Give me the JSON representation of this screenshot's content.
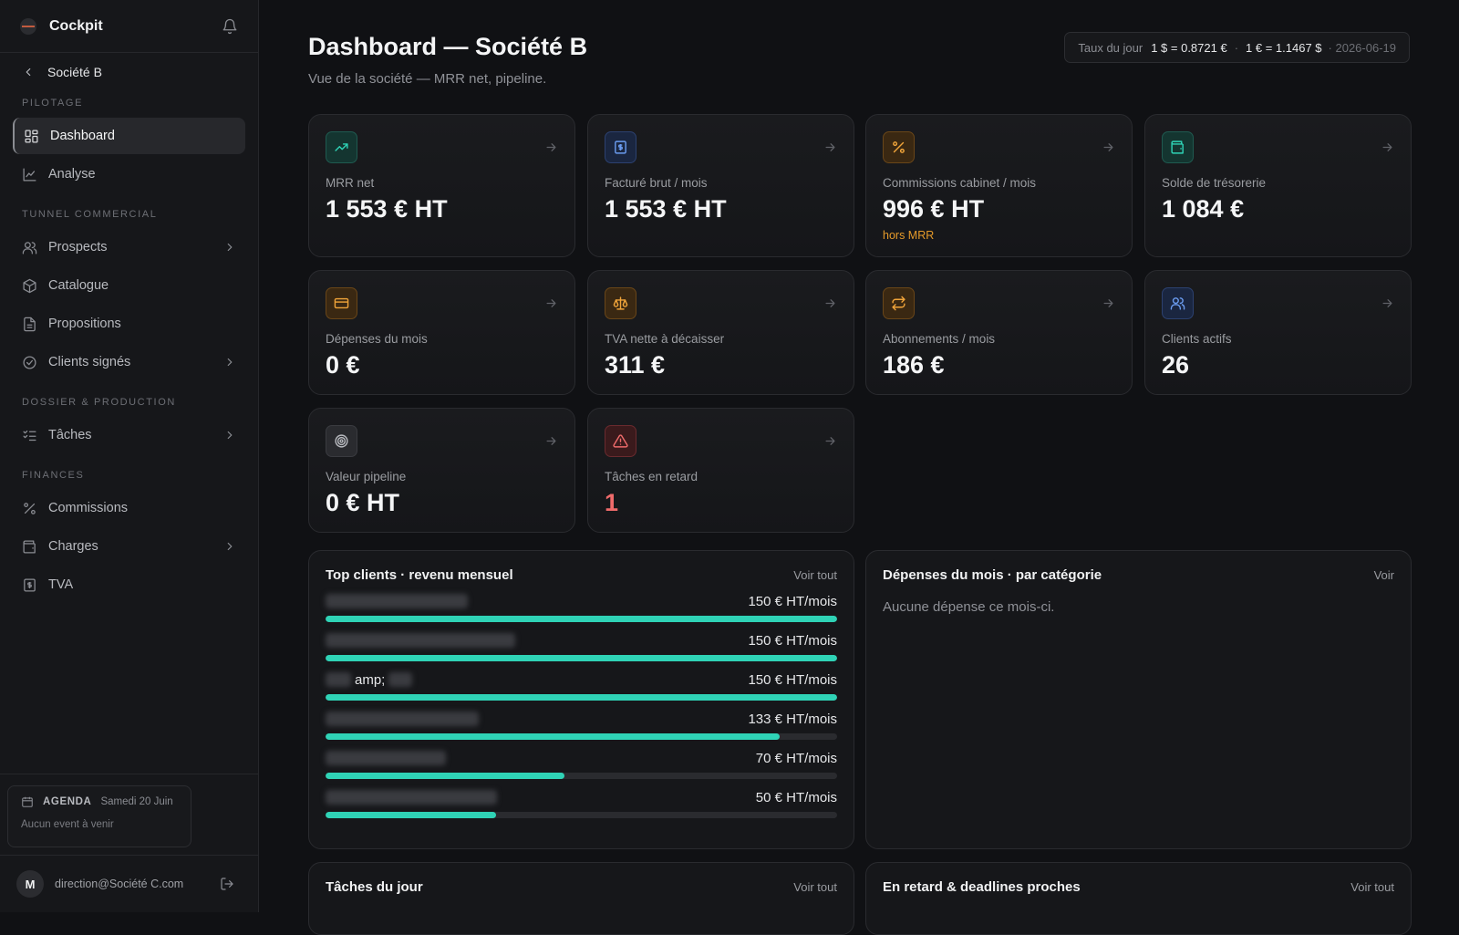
{
  "sidebar": {
    "brand": "Cockpit",
    "back_label": "Société B",
    "sections": [
      {
        "label": "PILOTAGE"
      },
      {
        "label": "TUNNEL COMMERCIAL"
      },
      {
        "label": "DOSSIER & PRODUCTION"
      },
      {
        "label": "FINANCES"
      }
    ],
    "items": {
      "dashboard": "Dashboard",
      "analyse": "Analyse",
      "prospects": "Prospects",
      "catalogue": "Catalogue",
      "propositions": "Propositions",
      "clients_signes": "Clients signés",
      "taches": "Tâches",
      "commissions": "Commissions",
      "charges": "Charges",
      "tva": "TVA"
    },
    "agenda": {
      "title": "AGENDA",
      "date": "Samedi 20 Juin",
      "empty": "Aucun event à venir"
    },
    "user": {
      "initial": "M",
      "email": "direction@Société C.com"
    }
  },
  "header": {
    "title": "Dashboard — Société B",
    "subtitle": "Vue de la société — MRR net, pipeline.",
    "rate": {
      "label": "Taux du jour",
      "usd_eur": "1 $ = 0.8721 €",
      "eur_usd": "1 € = 1.1467 $",
      "date": "· 2026-06-19"
    }
  },
  "kpis": [
    {
      "label": "MRR net",
      "value": "1 553 € HT",
      "icon": "trending-up-icon",
      "color": "teal"
    },
    {
      "label": "Facturé brut / mois",
      "value": "1 553 € HT",
      "icon": "invoice-icon",
      "color": "blue"
    },
    {
      "label": "Commissions cabinet / mois",
      "value": "996 € HT",
      "note": "hors MRR",
      "icon": "percent-icon",
      "color": "orange"
    },
    {
      "label": "Solde de trésorerie",
      "value": "1 084 €",
      "icon": "wallet-icon",
      "color": "teal"
    },
    {
      "label": "Dépenses du mois",
      "value": "0 €",
      "icon": "credit-card-icon",
      "color": "orange"
    },
    {
      "label": "TVA nette à décaisser",
      "value": "311 €",
      "icon": "scale-icon",
      "color": "orange"
    },
    {
      "label": "Abonnements / mois",
      "value": "186 €",
      "icon": "repeat-icon",
      "color": "orange"
    },
    {
      "label": "Clients actifs",
      "value": "26",
      "icon": "users-icon",
      "color": "blue"
    },
    {
      "label": "Valeur pipeline",
      "value": "0 € HT",
      "icon": "target-icon",
      "color": "gray"
    },
    {
      "label": "Tâches en retard",
      "value": "1",
      "icon": "alert-triangle-icon",
      "color": "red"
    }
  ],
  "top_clients": {
    "title": "Top clients · revenu mensuel",
    "link": "Voir tout",
    "rows": [
      {
        "name": "",
        "value": "150 € HT/mois",
        "fill": 1.0
      },
      {
        "name": "",
        "value": "150 € HT/mois",
        "fill": 1.0
      },
      {
        "name": "amp;",
        "value": "150 € HT/mois",
        "fill": 1.0
      },
      {
        "name": "",
        "value": "133 € HT/mois",
        "fill": 0.887
      },
      {
        "name": "",
        "value": "70 € HT/mois",
        "fill": 0.467
      },
      {
        "name": "",
        "value": "50 € HT/mois",
        "fill": 0.333
      }
    ]
  },
  "expenses": {
    "title": "Dépenses du mois · par catégorie",
    "link": "Voir",
    "empty": "Aucune dépense ce mois-ci."
  },
  "tasks_today": {
    "title": "Tâches du jour",
    "link": "Voir tout"
  },
  "late": {
    "title": "En retard & deadlines proches",
    "link": "Voir tout"
  },
  "colors": {
    "accent": "#2fd3b6",
    "warning": "#e59a2a",
    "danger": "#ef6b6b",
    "background": "#101114"
  }
}
